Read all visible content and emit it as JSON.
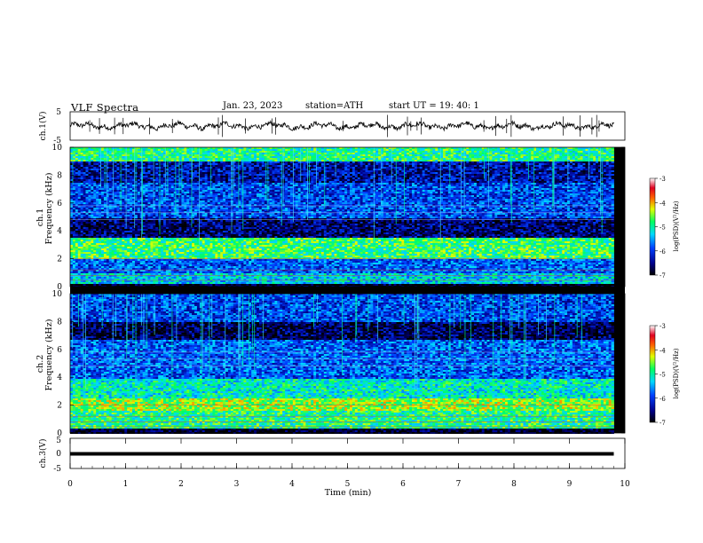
{
  "header": {
    "title": "VLF  Spectra",
    "date": "Jan. 23, 2023",
    "station": "station=ATH",
    "start": "start  UT  =   19: 40: 1"
  },
  "chart_data": [
    {
      "type": "line",
      "name": "ch1-waveform",
      "ylabel": "ch.1(V)",
      "ylim": [
        -5,
        5
      ],
      "yticks": [
        "5",
        "-5"
      ],
      "xlim": [
        0,
        10
      ],
      "baseline": 0,
      "data_extent_min": 9.8
    },
    {
      "type": "heatmap",
      "name": "ch1-spectrogram",
      "ylabel_top": "ch.1",
      "ylabel": "Frequency  (kHz)",
      "ylim": [
        0,
        10
      ],
      "yticks": [
        "0",
        "2",
        "4",
        "6",
        "8",
        "10"
      ],
      "xlim": [
        0,
        10
      ],
      "data_extent_min": 9.8,
      "colorbar": {
        "label": "log(PSD)(V²/Hz)",
        "range": [
          -7,
          -3
        ],
        "ticks": [
          "-3",
          "-4",
          "-5",
          "-6",
          "-7"
        ]
      },
      "bands": [
        {
          "f": [
            9.0,
            10.0
          ],
          "level": -5.0
        },
        {
          "f": [
            7.5,
            9.0
          ],
          "level": -6.4
        },
        {
          "f": [
            5.0,
            7.5
          ],
          "level": -6.0
        },
        {
          "f": [
            3.6,
            5.0
          ],
          "level": -6.6
        },
        {
          "f": [
            2.0,
            3.6
          ],
          "level": -4.9
        },
        {
          "f": [
            1.0,
            2.0
          ],
          "level": -5.9
        },
        {
          "f": [
            0.3,
            1.0
          ],
          "level": -5.4
        },
        {
          "f": [
            0.0,
            0.3
          ],
          "level": -6.9
        }
      ]
    },
    {
      "type": "heatmap",
      "name": "ch2-spectrogram",
      "ylabel_top": "ch.2",
      "ylabel": "Frequency  (kHz)",
      "ylim": [
        0,
        10
      ],
      "yticks": [
        "0",
        "2",
        "4",
        "6",
        "8",
        "10"
      ],
      "xlim": [
        0,
        10
      ],
      "data_extent_min": 9.8,
      "colorbar": {
        "label": "log(PSD)(V²/Hz)",
        "range": [
          -7,
          -3
        ],
        "ticks": [
          "-3",
          "-4",
          "-5",
          "-6",
          "-7"
        ]
      },
      "bands": [
        {
          "f": [
            8.0,
            10.0
          ],
          "level": -6.0
        },
        {
          "f": [
            6.8,
            8.0
          ],
          "level": -6.7
        },
        {
          "f": [
            4.0,
            6.8
          ],
          "level": -5.9
        },
        {
          "f": [
            2.6,
            4.0
          ],
          "level": -5.2
        },
        {
          "f": [
            1.6,
            2.6
          ],
          "level": -4.6
        },
        {
          "f": [
            0.4,
            1.6
          ],
          "level": -5.0
        },
        {
          "f": [
            0.0,
            0.4
          ],
          "level": -6.9
        }
      ]
    },
    {
      "type": "line",
      "name": "ch3-waveform",
      "ylabel": "ch.3(V)",
      "ylim": [
        -5,
        5
      ],
      "yticks": [
        "5",
        "0",
        "-5"
      ],
      "xlim": [
        0,
        10
      ],
      "baseline": 0,
      "data_extent_min": 9.8,
      "xlabel": "Time  (min)",
      "xticks": [
        "0",
        "1",
        "2",
        "3",
        "4",
        "5",
        "6",
        "7",
        "8",
        "9",
        "10"
      ]
    }
  ]
}
